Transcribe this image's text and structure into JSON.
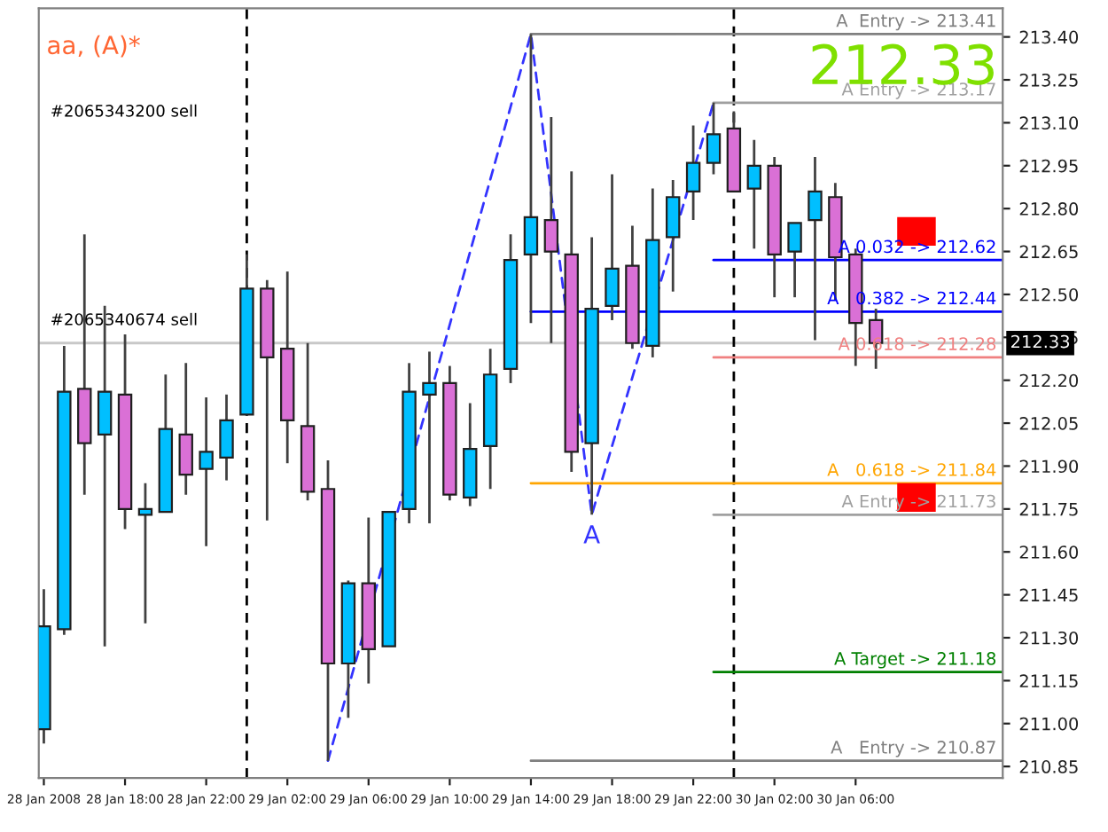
{
  "chart_data": {
    "type": "candlestick",
    "title": "aa, (A)*",
    "x": [
      "2008-01-28T14:00",
      "2008-01-28T15:00",
      "2008-01-28T16:00",
      "2008-01-28T17:00",
      "2008-01-28T18:00",
      "2008-01-28T19:00",
      "2008-01-28T20:00",
      "2008-01-28T21:00",
      "2008-01-28T22:00",
      "2008-01-28T23:00",
      "2008-01-29T00:00",
      "2008-01-29T01:00",
      "2008-01-29T02:00",
      "2008-01-29T03:00",
      "2008-01-29T04:00",
      "2008-01-29T05:00",
      "2008-01-29T06:00",
      "2008-01-29T07:00",
      "2008-01-29T08:00",
      "2008-01-29T09:00",
      "2008-01-29T10:00",
      "2008-01-29T11:00",
      "2008-01-29T12:00",
      "2008-01-29T13:00",
      "2008-01-29T14:00",
      "2008-01-29T15:00",
      "2008-01-29T16:00",
      "2008-01-29T17:00",
      "2008-01-29T18:00",
      "2008-01-29T19:00",
      "2008-01-29T20:00",
      "2008-01-29T21:00",
      "2008-01-29T22:00",
      "2008-01-29T23:00",
      "2008-01-30T00:00",
      "2008-01-30T01:00",
      "2008-01-30T02:00",
      "2008-01-30T03:00",
      "2008-01-30T04:00",
      "2008-01-30T05:00",
      "2008-01-30T06:00",
      "2008-01-30T07:00"
    ],
    "ohlc": [
      [
        210.98,
        211.47,
        210.93,
        211.34
      ],
      [
        211.33,
        212.32,
        211.31,
        212.16
      ],
      [
        212.17,
        212.71,
        211.8,
        211.98
      ],
      [
        212.01,
        212.46,
        211.27,
        212.16
      ],
      [
        212.15,
        212.36,
        211.68,
        211.75
      ],
      [
        211.73,
        211.84,
        211.35,
        211.75
      ],
      [
        211.74,
        212.22,
        211.74,
        212.03
      ],
      [
        212.01,
        212.26,
        211.8,
        211.87
      ],
      [
        211.89,
        212.14,
        211.62,
        211.95
      ],
      [
        211.93,
        212.15,
        211.85,
        212.06
      ],
      [
        212.08,
        212.64,
        212.08,
        212.52
      ],
      [
        212.52,
        212.55,
        211.71,
        212.28
      ],
      [
        212.31,
        212.58,
        211.91,
        212.06
      ],
      [
        212.04,
        212.33,
        211.78,
        211.81
      ],
      [
        211.82,
        211.92,
        210.87,
        211.21
      ],
      [
        211.21,
        211.5,
        211.02,
        211.49
      ],
      [
        211.49,
        211.72,
        211.14,
        211.26
      ],
      [
        211.27,
        211.74,
        211.27,
        211.74
      ],
      [
        211.75,
        212.26,
        211.7,
        212.16
      ],
      [
        212.15,
        212.3,
        211.7,
        212.19
      ],
      [
        212.19,
        212.25,
        211.78,
        211.8
      ],
      [
        211.79,
        212.12,
        211.76,
        211.96
      ],
      [
        211.97,
        212.31,
        211.82,
        212.22
      ],
      [
        212.24,
        212.71,
        212.19,
        212.62
      ],
      [
        212.64,
        213.41,
        212.4,
        212.77
      ],
      [
        212.76,
        213.12,
        212.33,
        212.65
      ],
      [
        212.64,
        212.93,
        211.88,
        211.95
      ],
      [
        211.98,
        212.7,
        211.73,
        212.45
      ],
      [
        212.46,
        212.92,
        212.41,
        212.59
      ],
      [
        212.6,
        212.74,
        212.31,
        212.33
      ],
      [
        212.32,
        212.87,
        212.28,
        212.69
      ],
      [
        212.7,
        212.9,
        212.51,
        212.84
      ],
      [
        212.86,
        213.09,
        212.76,
        212.96
      ],
      [
        212.96,
        213.17,
        212.92,
        213.06
      ],
      [
        213.08,
        213.14,
        212.86,
        212.86
      ],
      [
        212.87,
        213.04,
        212.66,
        212.95
      ],
      [
        212.95,
        212.98,
        212.49,
        212.64
      ],
      [
        212.65,
        212.75,
        212.49,
        212.75
      ],
      [
        212.76,
        212.98,
        212.34,
        212.86
      ],
      [
        212.84,
        212.89,
        212.48,
        212.63
      ],
      [
        212.64,
        212.66,
        212.25,
        212.4
      ],
      [
        212.41,
        212.45,
        212.24,
        212.33
      ]
    ],
    "colors": [
      "#00bfff",
      "#00bfff",
      "#da70d6",
      "#00bfff",
      "#da70d6",
      "#00bfff",
      "#00bfff",
      "#da70d6",
      "#00bfff",
      "#00bfff",
      "#00bfff",
      "#da70d6",
      "#da70d6",
      "#da70d6",
      "#da70d6",
      "#00bfff",
      "#da70d6",
      "#00bfff",
      "#00bfff",
      "#00bfff",
      "#da70d6",
      "#00bfff",
      "#00bfff",
      "#00bfff",
      "#00bfff",
      "#da70d6",
      "#da70d6",
      "#00bfff",
      "#00bfff",
      "#da70d6",
      "#00bfff",
      "#00bfff",
      "#00bfff",
      "#00bfff",
      "#da70d6",
      "#00bfff",
      "#da70d6",
      "#00bfff",
      "#00bfff",
      "#da70d6",
      "#da70d6",
      "#da70d6"
    ],
    "series": [
      {
        "type": "line",
        "color": "#3333ff",
        "line_style": "dashed",
        "x": [
          "2008-01-29T04:00",
          "2008-01-29T14:00",
          "2008-01-29T17:00",
          "2008-01-29T23:00"
        ],
        "values": [
          210.87,
          213.41,
          211.73,
          213.17
        ]
      },
      {
        "type": "line",
        "name": "A  Entry -> 213.41",
        "color": "#808080",
        "x": [
          "2008-01-29T14:00",
          "2008-01-30T13:15"
        ],
        "values": [
          213.41,
          213.41
        ]
      },
      {
        "type": "line",
        "name": "A Entry -> 213.17",
        "color": "#a0a0a0",
        "x": [
          "2008-01-29T23:00",
          "2008-01-30T13:15"
        ],
        "values": [
          213.17,
          213.17
        ]
      },
      {
        "type": "line",
        "name": "A 0.032 -> 212.62",
        "color": "#0000ff",
        "x": [
          "2008-01-29T23:00",
          "2008-01-30T13:15"
        ],
        "values": [
          212.62,
          212.62
        ]
      },
      {
        "type": "line",
        "name": "A   0.382 -> 212.44",
        "color": "#0000ff",
        "x": [
          "2008-01-29T14:00",
          "2008-01-30T13:15"
        ],
        "values": [
          212.44,
          212.44
        ]
      },
      {
        "type": "line",
        "name": "A 0.618 -> 212.28",
        "color": "#f08080",
        "x": [
          "2008-01-29T23:00",
          "2008-01-30T13:15"
        ],
        "values": [
          212.28,
          212.28
        ]
      },
      {
        "type": "line",
        "name": "A   0.618 -> 211.84",
        "color": "#ffa500",
        "x": [
          "2008-01-29T14:00",
          "2008-01-30T13:15"
        ],
        "values": [
          211.84,
          211.84
        ]
      },
      {
        "type": "line",
        "name": "A Entry -> 211.73",
        "color": "#a0a0a0",
        "x": [
          "2008-01-29T23:00",
          "2008-01-30T13:15"
        ],
        "values": [
          211.73,
          211.73
        ]
      },
      {
        "type": "line",
        "name": "A Target -> 211.18",
        "color": "#008000",
        "x": [
          "2008-01-29T23:00",
          "2008-01-30T13:15"
        ],
        "values": [
          211.18,
          211.18
        ]
      },
      {
        "type": "line",
        "name": "A   Entry -> 210.87",
        "color": "#808080",
        "x": [
          "2008-01-29T14:00",
          "2008-01-30T13:15"
        ],
        "values": [
          210.87,
          210.87
        ]
      },
      {
        "type": "bar",
        "color": "#ff0000",
        "x": [
          "2008-01-30T09:00",
          "2008-01-30T09:00"
        ],
        "base": [
          212.67,
          211.74
        ],
        "values": [
          0.1,
          0.1
        ]
      }
    ],
    "ref_lines": [
      {
        "axis": "y",
        "value": 212.33,
        "label": "212.33",
        "color": "#c8c8c8"
      },
      {
        "axis": "x",
        "value": "2008-01-29T00:00",
        "color": "#000000",
        "line_style": "dashed"
      },
      {
        "axis": "x",
        "value": "2008-01-30T00:00",
        "color": "#000000",
        "line_style": "dashed"
      }
    ],
    "annotations": [
      "#2065343200 sell",
      "#2065340674 sell",
      "212.33",
      {
        "text": "A",
        "x": "2008-01-29T17:00",
        "y": 211.73
      }
    ],
    "xlim": [
      "2008-01-28T13:45",
      "2008-01-30T13:15"
    ],
    "xticks": [
      {
        "value": "2008-01-28T14:00",
        "label": "28 Jan 2008"
      },
      {
        "value": "2008-01-28T18:00",
        "label": "28 Jan 18:00"
      },
      {
        "value": "2008-01-28T22:00",
        "label": "28 Jan 22:00"
      },
      {
        "value": "2008-01-29T02:00",
        "label": "29 Jan 02:00"
      },
      {
        "value": "2008-01-29T06:00",
        "label": "29 Jan 06:00"
      },
      {
        "value": "2008-01-29T10:00",
        "label": "29 Jan 10:00"
      },
      {
        "value": "2008-01-29T14:00",
        "label": "29 Jan 14:00"
      },
      {
        "value": "2008-01-29T18:00",
        "label": "29 Jan 18:00"
      },
      {
        "value": "2008-01-29T22:00",
        "label": "29 Jan 22:00"
      },
      {
        "value": "2008-01-30T02:00",
        "label": "30 Jan 02:00"
      },
      {
        "value": "2008-01-30T06:00",
        "label": "30 Jan 06:00"
      }
    ],
    "ylim": [
      210.81,
      213.5
    ],
    "yticks": [
      210.85,
      {
        "value": 211.0,
        "label": "211.00"
      },
      211.15,
      {
        "value": 211.3,
        "label": "211.30"
      },
      211.45,
      {
        "value": 211.6,
        "label": "211.60"
      },
      211.75,
      {
        "value": 211.9,
        "label": "211.90"
      },
      212.05,
      {
        "value": 212.2,
        "label": "212.20"
      },
      212.35,
      {
        "value": 212.5,
        "label": "212.50"
      },
      212.65,
      {
        "value": 212.8,
        "label": "212.80"
      },
      212.95,
      {
        "value": 213.1,
        "label": "213.10"
      },
      213.25,
      {
        "value": 213.4,
        "label": "213.40"
      }
    ],
    "grid": false,
    "legend": false
  }
}
